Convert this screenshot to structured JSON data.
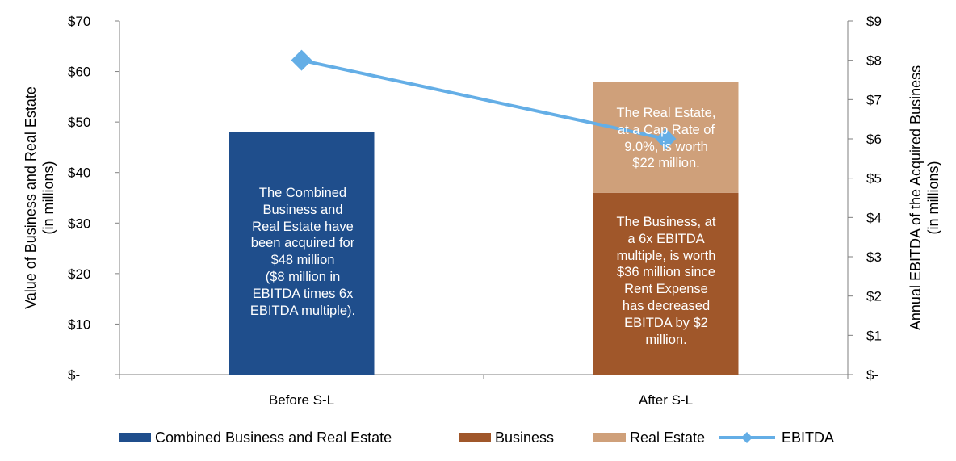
{
  "chart_data": {
    "type": "bar",
    "stacked": true,
    "categories": [
      "Before S-L",
      "After S-L"
    ],
    "series": [
      {
        "name": "Combined Business and Real Estate",
        "axis": "left",
        "kind": "bar",
        "color": "#1f4e8c",
        "values": [
          48,
          0
        ]
      },
      {
        "name": "Business",
        "axis": "left",
        "kind": "bar",
        "color": "#a0572a",
        "values": [
          0,
          36
        ]
      },
      {
        "name": "Real Estate",
        "axis": "left",
        "kind": "bar",
        "color": "#cfa07a",
        "values": [
          0,
          22
        ]
      },
      {
        "name": "EBITDA",
        "axis": "right",
        "kind": "line",
        "color": "#64aee6",
        "marker": "diamond",
        "values": [
          8,
          6
        ]
      }
    ],
    "ylabel": "Value of Business and Real Estate",
    "ylabel_sub": "(in millions)",
    "ylim": [
      0,
      70
    ],
    "yticks": [
      "$-",
      "$10",
      "$20",
      "$30",
      "$40",
      "$50",
      "$60",
      "$70"
    ],
    "y2label": "Annual EBITDA of the Acquired Business",
    "y2label_sub": "(in millions)",
    "y2lim": [
      0,
      9
    ],
    "y2ticks": [
      "$-",
      "$1",
      "$2",
      "$3",
      "$4",
      "$5",
      "$6",
      "$7",
      "$8",
      "$9"
    ],
    "legend_position": "bottom",
    "grid": false,
    "annotations": [
      "The Combined\nBusiness and\nReal Estate have\nbeen acquired for\n$48 million\n($8 million in\nEBITDA times 6x\nEBITDA multiple).",
      "The Real Estate,\nat a Cap Rate of\n9.0%, is worth\n$22 million.",
      "The Business, at\na 6x EBITDA\nmultiple, is worth\n$36 million since\nRent Expense\nhas decreased\nEBITDA by $2\nmillion."
    ]
  }
}
